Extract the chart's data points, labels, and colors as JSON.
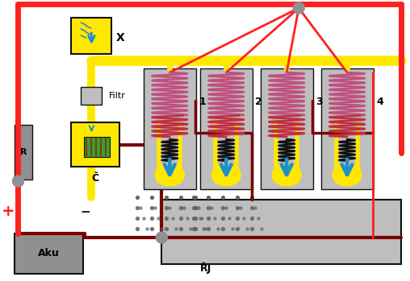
{
  "bg_color": "#ffffff",
  "yellow": "#FFE800",
  "red": "#FF2020",
  "dark_red": "#7B0000",
  "gray": "#909090",
  "light_gray": "#BEBEBE",
  "blue": "#1E90D0",
  "pink": "#C05080",
  "crimson": "#C03040",
  "black": "#111111",
  "green": "#38A038",
  "brown_red": "#8B1010",
  "inj_labels": [
    "1",
    "2",
    "3",
    "4"
  ],
  "aku_label": "Aku",
  "filtr_label": "Filtr",
  "r_label": "R",
  "c_label": "Č",
  "x_label": "X",
  "rj_label": "ŘJ",
  "plus_label": "+",
  "minus_label": "−"
}
